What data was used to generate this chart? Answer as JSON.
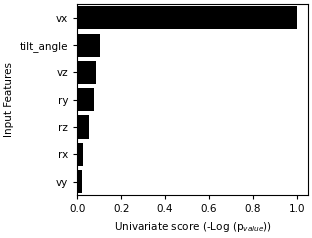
{
  "features": [
    "vx",
    "tilt_angle",
    "vz",
    "ry",
    "rz",
    "rx",
    "vy"
  ],
  "scores": [
    1.0,
    0.105,
    0.085,
    0.075,
    0.055,
    0.028,
    0.022
  ],
  "bar_color": "#000000",
  "xlabel": "Univariate score (-Log (p$_{value}$))",
  "ylabel": "Input Features",
  "xlim": [
    0.0,
    1.05
  ],
  "xticks": [
    0.0,
    0.2,
    0.4,
    0.6,
    0.8,
    1.0
  ],
  "background_color": "#ffffff",
  "tick_fontsize": 7.5,
  "label_fontsize": 7.5,
  "bar_height": 0.85
}
